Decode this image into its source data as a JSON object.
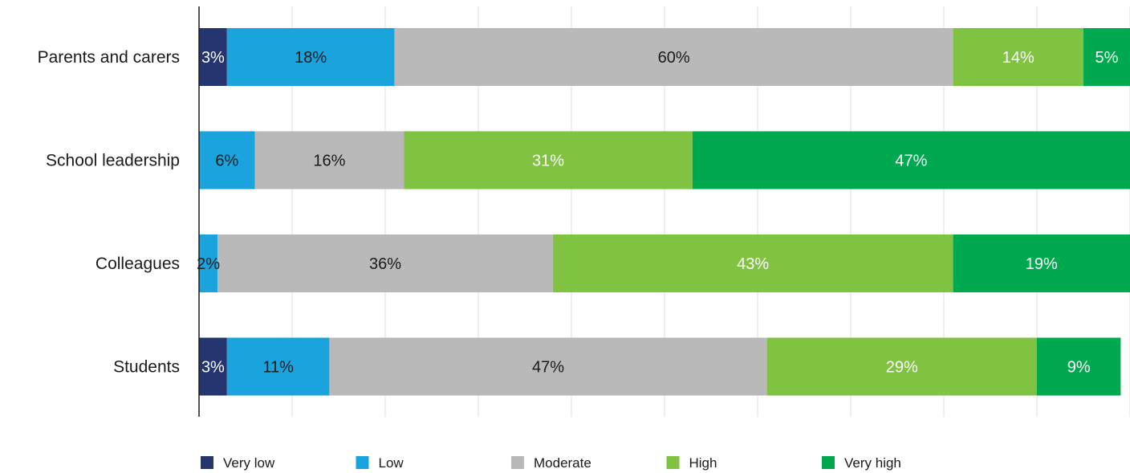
{
  "chart_data": {
    "type": "bar",
    "orientation": "horizontal",
    "stacked": true,
    "categories": [
      "Parents and carers",
      "School leadership",
      "Colleagues",
      "Students"
    ],
    "xlim": [
      0,
      100
    ],
    "grid": true,
    "legend_position": "bottom",
    "series": [
      {
        "name": "Very low",
        "color": "#253570",
        "label_color": "#ffffff",
        "values": [
          3,
          0,
          0,
          3
        ]
      },
      {
        "name": "Low",
        "color": "#1aa3dc",
        "label_color": "#1a1a1a",
        "values": [
          18,
          6,
          2,
          11
        ]
      },
      {
        "name": "Moderate",
        "color": "#b9b9b9",
        "label_color": "#1a1a1a",
        "values": [
          60,
          16,
          36,
          47
        ]
      },
      {
        "name": "High",
        "color": "#80c242",
        "label_color": "#ffffff",
        "values": [
          14,
          31,
          43,
          29
        ]
      },
      {
        "name": "Very high",
        "color": "#00a94f",
        "label_color": "#ffffff",
        "values": [
          5,
          47,
          19,
          9
        ]
      }
    ],
    "data_labels": [
      [
        "3%",
        "18%",
        "60%",
        "14%",
        "5%"
      ],
      [
        "",
        "6%",
        "16%",
        "31%",
        "47%"
      ],
      [
        "",
        "2%",
        "36%",
        "43%",
        "19%"
      ],
      [
        "3%",
        "11%",
        "47%",
        "29%",
        "9%"
      ]
    ]
  }
}
